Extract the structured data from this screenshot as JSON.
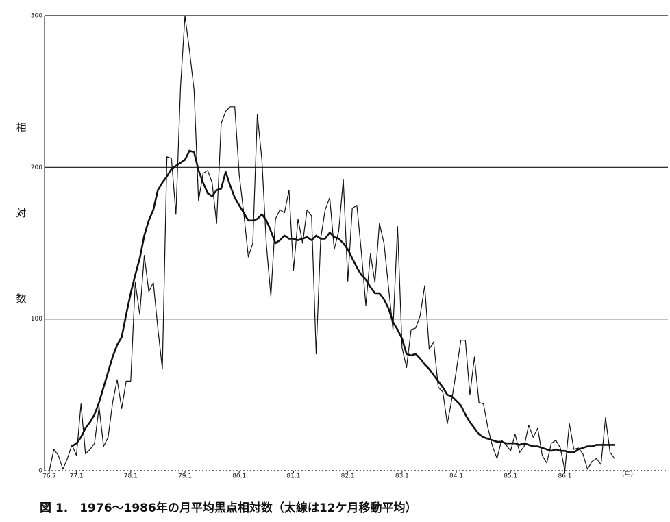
{
  "chart_data": {
    "type": "line",
    "title": "図 1.　1976〜1986年の月平均黒点相対数（太線は12ケ月移動平均）",
    "y_label": "相対数",
    "x_unit": "(年)",
    "x": [
      76.5,
      76.583,
      76.667,
      76.75,
      76.833,
      76.917,
      77,
      77.083,
      77.167,
      77.25,
      77.333,
      77.417,
      77.5,
      77.583,
      77.667,
      77.75,
      77.833,
      77.917,
      78,
      78.083,
      78.167,
      78.25,
      78.333,
      78.417,
      78.5,
      78.583,
      78.667,
      78.75,
      78.833,
      78.917,
      79,
      79.083,
      79.167,
      79.25,
      79.333,
      79.417,
      79.5,
      79.583,
      79.667,
      79.75,
      79.833,
      79.917,
      80,
      80.083,
      80.167,
      80.25,
      80.333,
      80.417,
      80.5,
      80.583,
      80.667,
      80.75,
      80.833,
      80.917,
      81,
      81.083,
      81.167,
      81.25,
      81.333,
      81.417,
      81.5,
      81.583,
      81.667,
      81.75,
      81.833,
      81.917,
      82,
      82.083,
      82.167,
      82.25,
      82.333,
      82.417,
      82.5,
      82.583,
      82.667,
      82.75,
      82.833,
      82.917,
      83,
      83.083,
      83.167,
      83.25,
      83.333,
      83.417,
      83.5,
      83.583,
      83.667,
      83.75,
      83.833,
      83.917,
      84,
      84.083,
      84.167,
      84.25,
      84.333,
      84.417,
      84.5,
      84.583,
      84.667,
      84.75,
      84.833,
      84.917,
      85,
      85.083,
      85.167,
      85.25,
      85.333,
      85.417,
      85.5,
      85.583,
      85.667,
      85.75,
      85.833,
      85.917,
      86,
      86.083,
      86.167,
      86.25,
      86.333,
      86.417,
      86.5,
      86.583,
      86.667,
      86.75,
      86.833,
      86.917
    ],
    "series": [
      {
        "color": "#111111",
        "width": 1.2,
        "values": [
          0,
          14,
          10,
          1,
          8,
          17,
          10,
          44,
          11,
          14,
          18,
          42,
          16,
          22,
          45,
          60,
          41,
          59,
          59,
          124,
          103,
          142,
          118,
          124,
          94,
          67,
          207,
          206,
          169,
          253,
          300,
          277,
          251,
          178,
          196,
          198,
          190,
          163,
          229,
          237,
          240,
          240,
          195,
          170,
          141,
          150,
          235,
          205,
          149,
          115,
          166,
          172,
          170,
          185,
          132,
          166,
          150,
          172,
          168,
          77,
          153,
          172,
          180,
          146,
          158,
          192,
          125,
          173,
          175,
          144,
          109,
          143,
          124,
          163,
          150,
          121,
          93,
          161,
          81,
          68,
          93,
          94,
          102,
          122,
          80,
          85,
          55,
          52,
          31,
          47,
          66,
          86,
          86,
          50,
          75,
          45,
          44,
          28,
          16,
          8,
          20,
          17,
          13,
          24,
          12,
          16,
          30,
          22,
          28,
          10,
          5,
          18,
          20,
          15,
          0,
          31,
          14,
          15,
          11,
          1,
          6,
          8,
          4,
          35,
          12,
          8
        ]
      },
      {
        "color": "#111111",
        "width": 2.6,
        "values": [
          null,
          null,
          null,
          null,
          null,
          16,
          18,
          22,
          28,
          32,
          37,
          45,
          55,
          65,
          75,
          83,
          88,
          103,
          117,
          129,
          140,
          155,
          165,
          172,
          185,
          190,
          194,
          199,
          201,
          203,
          205,
          211,
          210,
          198,
          190,
          183,
          181,
          185,
          186,
          197,
          188,
          180,
          175,
          170,
          165,
          165,
          166,
          169,
          165,
          158,
          150,
          152,
          155,
          153,
          153,
          152,
          153,
          154,
          152,
          155,
          153,
          153,
          157,
          154,
          153,
          150,
          146,
          140,
          134,
          129,
          126,
          121,
          117,
          117,
          113,
          107,
          98,
          93,
          87,
          77,
          76,
          77,
          74,
          70,
          67,
          63,
          59,
          55,
          50,
          49,
          46,
          43,
          37,
          32,
          28,
          24,
          22,
          21,
          20,
          19,
          19,
          18,
          18,
          18,
          17,
          18,
          17,
          16,
          16,
          15,
          14,
          13,
          14,
          13,
          13,
          12,
          12,
          14,
          15,
          16,
          16,
          17,
          17,
          17,
          17,
          17
        ]
      }
    ],
    "xlim": [
      76.5,
      87.9
    ],
    "xticks": [
      {
        "value": 76.5,
        "label": "76.7"
      },
      {
        "value": 77,
        "label": "77.1"
      },
      {
        "value": 78,
        "label": "78.1"
      },
      {
        "value": 79,
        "label": "79.1"
      },
      {
        "value": 80,
        "label": "80.1"
      },
      {
        "value": 81,
        "label": "81.1"
      },
      {
        "value": 82,
        "label": "82.1"
      },
      {
        "value": 83,
        "label": "83.1"
      },
      {
        "value": 84,
        "label": "84.1"
      },
      {
        "value": 85,
        "label": "85.1"
      },
      {
        "value": 86,
        "label": "86.1"
      }
    ],
    "ylim": [
      0,
      300
    ],
    "yticks": [
      0,
      100,
      200,
      300
    ],
    "grid": true
  }
}
